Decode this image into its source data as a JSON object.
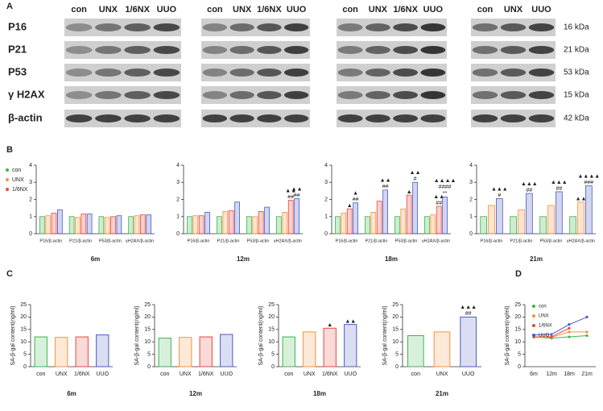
{
  "panel_labels": [
    "A",
    "B",
    "C",
    "D"
  ],
  "western_blot": {
    "lane_groups": [
      [
        "con",
        "UNX",
        "1/6NX",
        "UUO"
      ],
      [
        "con",
        "UNX",
        "1/6NX",
        "UUO"
      ],
      [
        "con",
        "UNX",
        "1/6NX",
        "UUO"
      ],
      [
        "con",
        "UNX",
        "UUO"
      ]
    ],
    "proteins": [
      "P16",
      "P21",
      "P53",
      "γ H2AX",
      "β-actin"
    ],
    "sizes": [
      "16 kDa",
      "21 kDa",
      "53 kDa",
      "15 kDa",
      "42 kDa"
    ]
  },
  "chart_data": [
    {
      "type": "grouped_bar",
      "xlabel": "6m",
      "categories": [
        "P16/β-actin",
        "P21/β-actin",
        "P53/β-actin",
        "γH2AX/β-actin"
      ],
      "ylim": [
        0,
        4
      ],
      "yticks": [
        0,
        1,
        2,
        3,
        4
      ],
      "legend": "left",
      "series": [
        {
          "name": "con",
          "color": "#3cb44b",
          "values": [
            1,
            1,
            1,
            1
          ]
        },
        {
          "name": "UNX",
          "color": "#f5923e",
          "values": [
            1.05,
            0.95,
            0.95,
            1.05
          ]
        },
        {
          "name": "1/6NX",
          "color": "#e8473c",
          "values": [
            1.2,
            1.15,
            1.0,
            1.1
          ]
        },
        {
          "color": "#4a5bc4",
          "values": [
            1.4,
            1.15,
            1.05,
            1.1
          ]
        }
      ]
    },
    {
      "type": "grouped_bar",
      "xlabel": "12m",
      "categories": [
        "P16/β-actin",
        "P21/β-actin",
        "P53/β-actin",
        "γH2AX/β-actin"
      ],
      "ylim": [
        0,
        4
      ],
      "yticks": [
        0,
        1,
        2,
        3,
        4
      ],
      "series": [
        {
          "color": "#3cb44b",
          "values": [
            1,
            1,
            1,
            1
          ]
        },
        {
          "color": "#f5923e",
          "values": [
            1.05,
            1.3,
            1.0,
            1.25
          ]
        },
        {
          "color": "#e8473c",
          "values": [
            1.05,
            1.35,
            1.3,
            1.95
          ],
          "annotations": [
            null,
            null,
            null,
            [
              "▲▲",
              "##"
            ]
          ]
        },
        {
          "color": "#4a5bc4",
          "values": [
            1.25,
            1.85,
            1.55,
            2.05
          ],
          "annotations": [
            null,
            null,
            null,
            [
              "▲▲",
              "##"
            ]
          ]
        }
      ]
    },
    {
      "type": "grouped_bar",
      "xlabel": "18m",
      "categories": [
        "P16/β-actin",
        "P21/β-actin",
        "P53/β-actin",
        "γH2AX/β-actin"
      ],
      "ylim": [
        0,
        4
      ],
      "yticks": [
        0,
        1,
        2,
        3,
        4
      ],
      "series": [
        {
          "color": "#3cb44b",
          "values": [
            1,
            1,
            1,
            1
          ]
        },
        {
          "color": "#f5923e",
          "values": [
            1.2,
            1.25,
            1.45,
            1.1
          ]
        },
        {
          "color": "#e8473c",
          "values": [
            1.45,
            1.9,
            2.25,
            1.6
          ],
          "annotations": [
            [
              "▲"
            ],
            null,
            [
              "▲"
            ],
            [
              "▲▲",
              "##"
            ]
          ]
        },
        {
          "color": "#4a5bc4",
          "values": [
            1.8,
            2.55,
            3.0,
            2.15
          ],
          "annotations": [
            [
              "▲",
              "##"
            ],
            [
              "▲▲",
              "##"
            ],
            [
              "▲▲",
              "#"
            ],
            [
              "▲▲▲▲",
              "####",
              "**"
            ]
          ]
        }
      ]
    },
    {
      "type": "grouped_bar",
      "xlabel": "21m",
      "categories": [
        "P16/β-actin",
        "P21/β-actin",
        "P53/β-actin",
        "γH2AX/β-actin"
      ],
      "ylim": [
        0,
        4
      ],
      "yticks": [
        0,
        1,
        2,
        3,
        4
      ],
      "series": [
        {
          "color": "#3cb44b",
          "values": [
            1,
            1,
            1,
            1
          ]
        },
        {
          "color": "#f5923e",
          "values": [
            1.65,
            1.4,
            1.65,
            1.85
          ],
          "annotations": [
            null,
            null,
            null,
            [
              "▲▲"
            ]
          ]
        },
        {
          "color": "#4a5bc4",
          "values": [
            2.05,
            2.35,
            2.45,
            2.8
          ],
          "annotations": [
            [
              "▲▲▲",
              "#"
            ],
            [
              "▲▲▲",
              "##"
            ],
            [
              "▲▲▲",
              "##"
            ],
            [
              "▲▲▲▲",
              "###"
            ]
          ]
        }
      ]
    },
    {
      "type": "bar",
      "xlabel": "6m",
      "ylabel": "SA-β-gal content(ng/ml)",
      "categories": [
        "con",
        "UNX",
        "1/6NX",
        "UUO"
      ],
      "values": [
        12,
        11.8,
        12,
        12.8
      ],
      "colors": [
        "#3cb44b",
        "#f5923e",
        "#e8473c",
        "#4a5bc4"
      ],
      "ylim": [
        0,
        25
      ],
      "yticks": [
        0,
        5,
        10,
        15,
        20,
        25
      ]
    },
    {
      "type": "bar",
      "xlabel": "12m",
      "ylabel": "SA-β-gal content(ng/ml)",
      "categories": [
        "con",
        "UNX",
        "1/6NX",
        "UUO"
      ],
      "values": [
        11.5,
        11.8,
        12,
        13
      ],
      "colors": [
        "#3cb44b",
        "#f5923e",
        "#e8473c",
        "#4a5bc4"
      ],
      "ylim": [
        0,
        25
      ],
      "yticks": [
        0,
        5,
        10,
        15,
        20,
        25
      ]
    },
    {
      "type": "bar",
      "xlabel": "18m",
      "ylabel": "SA-β-gal content(ng/ml)",
      "categories": [
        "con",
        "UNX",
        "1/6NX",
        "UUO"
      ],
      "values": [
        12,
        14,
        15.5,
        17
      ],
      "colors": [
        "#3cb44b",
        "#f5923e",
        "#e8473c",
        "#4a5bc4"
      ],
      "ylim": [
        0,
        25
      ],
      "yticks": [
        0,
        5,
        10,
        15,
        20,
        25
      ],
      "annotations": [
        null,
        null,
        [
          "▲"
        ],
        [
          "▲▲"
        ]
      ]
    },
    {
      "type": "bar",
      "xlabel": "21m",
      "ylabel": "SA-β-gal content(ng/ml)",
      "categories": [
        "con",
        "UNX",
        "UUO"
      ],
      "values": [
        12.5,
        14,
        20
      ],
      "colors": [
        "#3cb44b",
        "#f5923e",
        "#4a5bc4"
      ],
      "ylim": [
        0,
        25
      ],
      "yticks": [
        0,
        5,
        10,
        15,
        20,
        25
      ],
      "annotations": [
        null,
        null,
        [
          "▲▲▲",
          "##"
        ]
      ]
    },
    {
      "type": "line",
      "ylabel": "SA-β-gal content(ng/ml)",
      "categories": [
        "6m",
        "12m",
        "18m",
        "21m"
      ],
      "ylim": [
        0,
        25
      ],
      "yticks": [
        0,
        5,
        10,
        15,
        20,
        25
      ],
      "legend": "upper left",
      "series": [
        {
          "name": "con",
          "color": "#3cb44b",
          "values": [
            12,
            11.5,
            12,
            12.5
          ]
        },
        {
          "name": "UNX",
          "color": "#f5923e",
          "values": [
            11.8,
            11.8,
            14,
            14
          ]
        },
        {
          "name": "1/6NX",
          "color": "#e8473c",
          "values": [
            12,
            12,
            15.5,
            null
          ]
        },
        {
          "name": "UUO",
          "color": "#4a5bc4",
          "values": [
            12.8,
            13,
            17,
            20
          ]
        }
      ]
    }
  ]
}
